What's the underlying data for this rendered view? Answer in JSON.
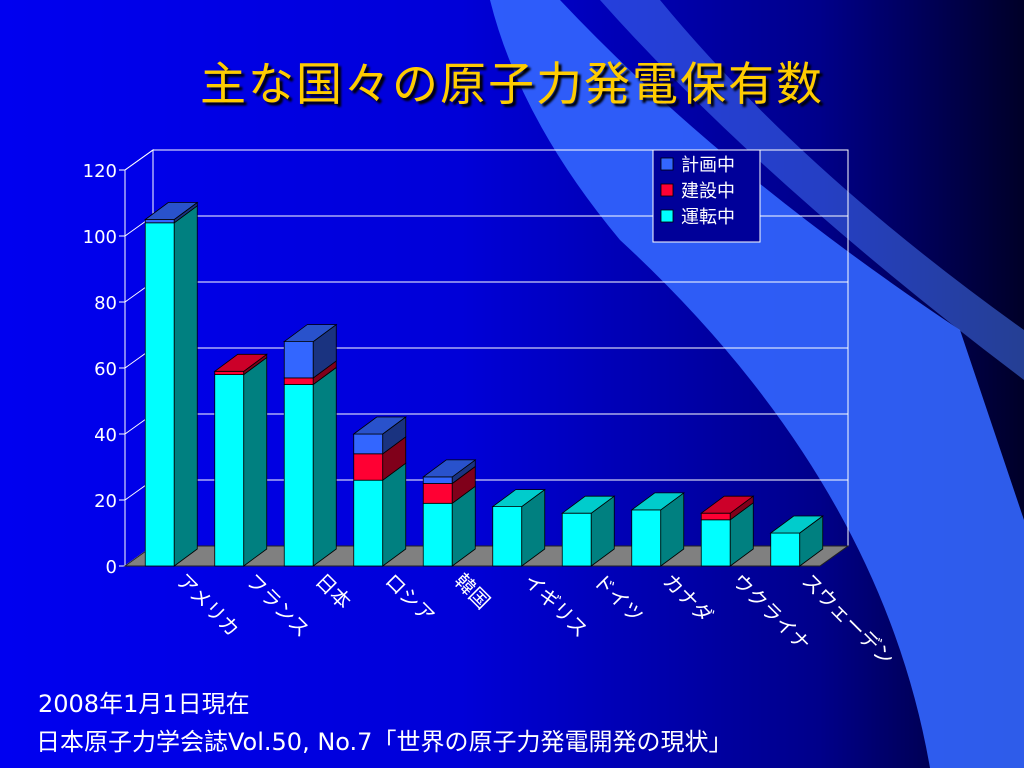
{
  "title": "主な国々の原子力発電保有数",
  "footer": {
    "line1": "2008年1月1日現在",
    "line2": "日本原子力学会誌Vol.50, No.7「世界の原子力発電開発の現状」"
  },
  "colors": {
    "operating": "#00ffff",
    "construction": "#ff0033",
    "planned": "#3366ff",
    "title": "#ffcc00"
  },
  "chart_data": {
    "type": "bar",
    "stacked": true,
    "categories": [
      "アメリカ",
      "フランス",
      "日本",
      "ロシア",
      "韓国",
      "イギリス",
      "ドイツ",
      "カナダ",
      "ウクライナ",
      "スウェーデン"
    ],
    "series": [
      {
        "name": "運転中",
        "values": [
          104,
          58,
          55,
          26,
          19,
          18,
          16,
          17,
          14,
          10
        ]
      },
      {
        "name": "建設中",
        "values": [
          0,
          1,
          2,
          8,
          6,
          0,
          0,
          0,
          2,
          0
        ]
      },
      {
        "name": "計画中",
        "values": [
          1,
          0,
          11,
          6,
          2,
          0,
          0,
          0,
          0,
          0
        ]
      }
    ],
    "legend": [
      "計画中",
      "建設中",
      "運転中"
    ],
    "yticks": [
      "0",
      "20",
      "40",
      "60",
      "80",
      "100",
      "120"
    ],
    "ylim": [
      0,
      120
    ],
    "grid": true,
    "legend_position": "top-right"
  }
}
